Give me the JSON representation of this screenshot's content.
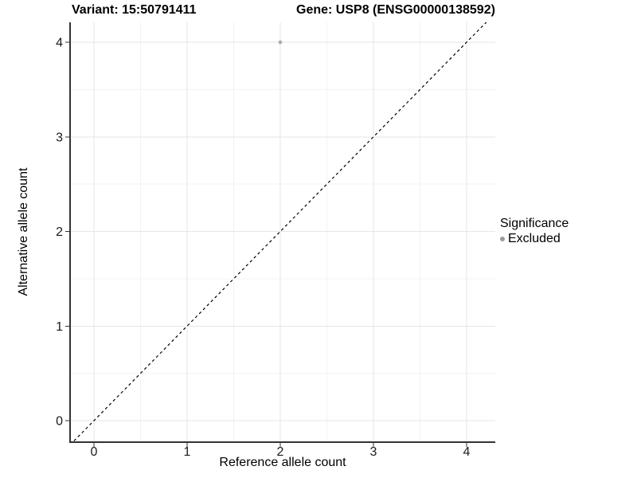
{
  "titles": {
    "left": "Variant: 15:50791411",
    "right": "Gene: USP8 (ENSG00000138592)"
  },
  "chart_data": {
    "type": "scatter",
    "xlabel": "Reference allele count",
    "ylabel": "Alternative allele count",
    "xlim": [
      -0.256,
      4.308
    ],
    "ylim": [
      -0.227,
      4.211
    ],
    "x_ticks": [
      0,
      1,
      2,
      3,
      4
    ],
    "y_ticks": [
      0,
      1,
      2,
      3,
      4
    ],
    "grid": {
      "major": true,
      "minor": true
    },
    "points": [
      {
        "x": 2,
        "y": 4,
        "series": "Excluded"
      }
    ],
    "reference_line": {
      "slope": 1,
      "intercept": 0,
      "style": "dashed"
    },
    "legend": {
      "title": "Significance",
      "position": "right",
      "entries": [
        {
          "label": "Excluded",
          "color": "#9b9b9b"
        }
      ]
    },
    "colors": {
      "grid_major": "#e6e6e6",
      "grid_minor": "#f3f3f3",
      "axis_line": "#333333",
      "tick_mark": "#333333",
      "tick_text": "#1a1a1a",
      "point": "#a9a9a9",
      "reference_line": "#000000"
    }
  }
}
